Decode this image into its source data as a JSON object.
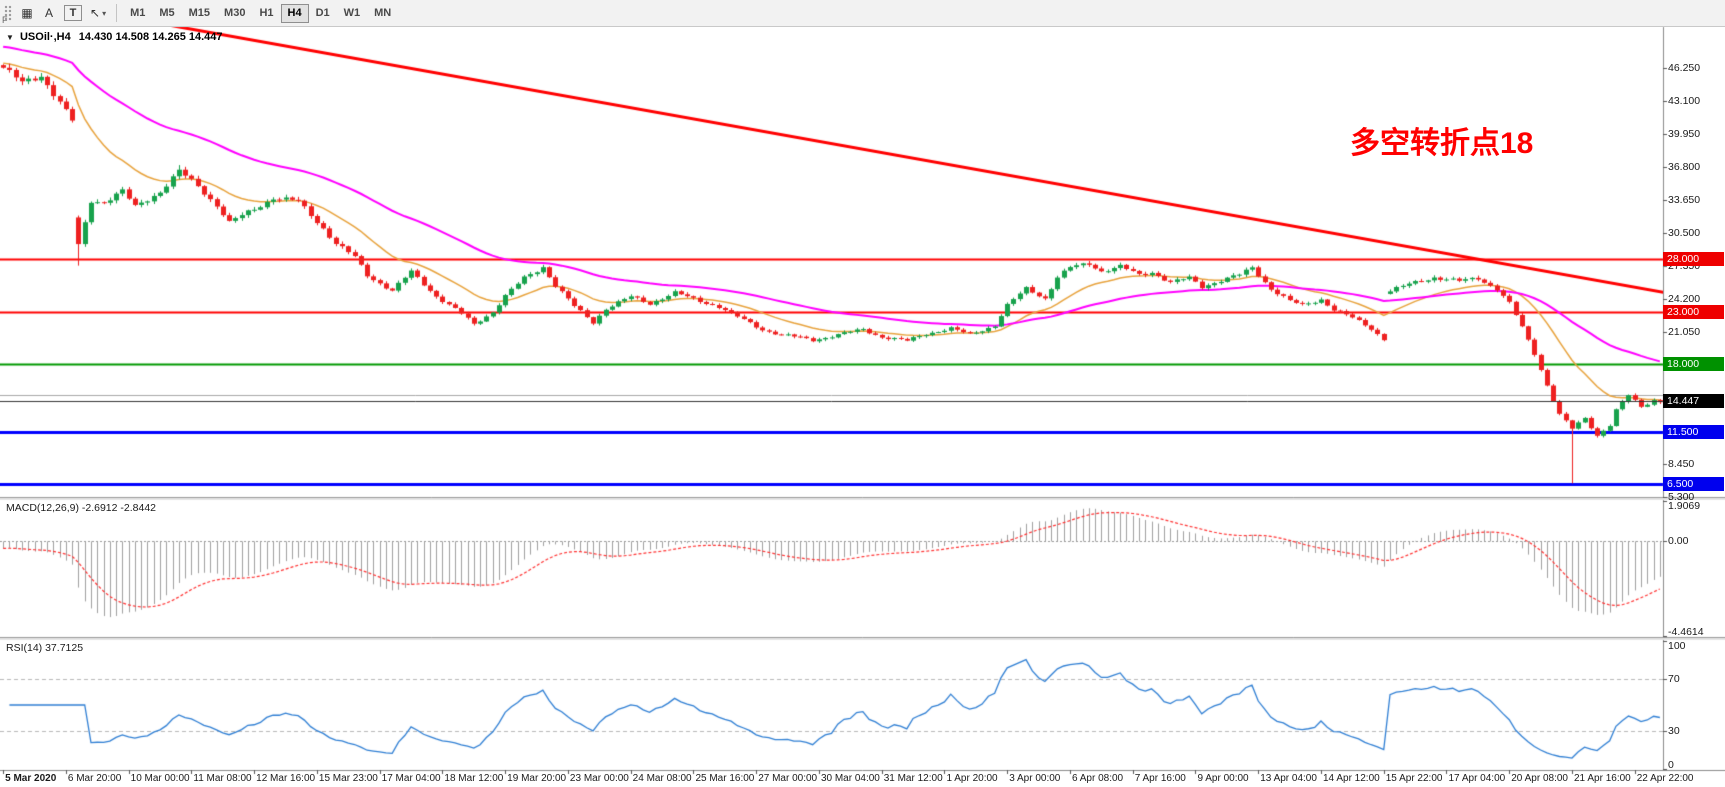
{
  "toolbar": {
    "icon_buttons": [
      {
        "id": "tile-windows",
        "glyph": "▦"
      },
      {
        "id": "text-label",
        "glyph": "A"
      },
      {
        "id": "textbox-tool",
        "glyph": "T"
      },
      {
        "id": "cursor-tool",
        "glyph": "↖"
      }
    ],
    "caret": "▾",
    "timeframes": [
      "M1",
      "M5",
      "M15",
      "M30",
      "H1",
      "H4",
      "D1",
      "W1",
      "MN"
    ],
    "active_timeframe": "H4",
    "docked_label": "F"
  },
  "chart": {
    "chevron": "▼",
    "title_symbol": "USOil·,H4",
    "ohlc": "14.430 14.508 14.265 14.447",
    "annotation": {
      "text": "多空转折点18",
      "color": "#ff0000"
    },
    "macd_label": "MACD(12,26,9) -2.6912 -2.8442",
    "rsi_label": "RSI(14) 37.7125"
  },
  "chart_data": {
    "type": "candlestick",
    "symbol": "USOil",
    "timeframe": "H4",
    "bars": 265,
    "current_price": 14.447,
    "ohlc_display": {
      "open": "14.430",
      "high": "14.508",
      "low": "14.265",
      "close": "14.447"
    },
    "candle_colors": {
      "up": "#17a24c",
      "down": "#ee2020"
    },
    "price_axis": {
      "min": 5.3,
      "max": 50.0,
      "ticks": [
        46.25,
        43.1,
        39.95,
        36.8,
        33.65,
        30.5,
        27.35,
        24.2,
        21.05,
        17.9,
        14.75,
        11.6,
        8.45,
        5.3
      ]
    },
    "close_waypoints": [
      [
        0,
        46.3
      ],
      [
        3,
        44.8
      ],
      [
        6,
        45.6
      ],
      [
        9,
        43.0
      ],
      [
        11,
        41.2
      ],
      [
        12,
        29.3
      ],
      [
        14,
        33.6
      ],
      [
        16,
        33.5
      ],
      [
        19,
        34.5
      ],
      [
        21,
        33.0
      ],
      [
        25,
        34.5
      ],
      [
        28,
        36.4
      ],
      [
        31,
        35.0
      ],
      [
        34,
        33.2
      ],
      [
        36,
        31.5
      ],
      [
        40,
        32.8
      ],
      [
        43,
        33.9
      ],
      [
        47,
        33.5
      ],
      [
        51,
        31.0
      ],
      [
        53,
        29.5
      ],
      [
        56,
        28.2
      ],
      [
        58,
        26.5
      ],
      [
        62,
        25.0
      ],
      [
        65,
        26.8
      ],
      [
        69,
        24.5
      ],
      [
        73,
        22.8
      ],
      [
        75,
        21.8
      ],
      [
        78,
        23.0
      ],
      [
        80,
        24.5
      ],
      [
        83,
        26.2
      ],
      [
        86,
        27.3
      ],
      [
        88,
        25.5
      ],
      [
        91,
        23.5
      ],
      [
        94,
        22.0
      ],
      [
        96,
        23.3
      ],
      [
        100,
        24.4
      ],
      [
        103,
        23.8
      ],
      [
        107,
        24.8
      ],
      [
        110,
        24.2
      ],
      [
        114,
        23.5
      ],
      [
        117,
        22.5
      ],
      [
        121,
        21.3
      ],
      [
        124,
        20.8
      ],
      [
        129,
        20.3
      ],
      [
        133,
        20.8
      ],
      [
        137,
        21.3
      ],
      [
        140,
        20.6
      ],
      [
        144,
        20.2
      ],
      [
        147,
        20.9
      ],
      [
        151,
        21.4
      ],
      [
        154,
        20.8
      ],
      [
        158,
        21.7
      ],
      [
        160,
        23.6
      ],
      [
        163,
        25.2
      ],
      [
        166,
        24.3
      ],
      [
        168,
        26.3
      ],
      [
        170,
        27.2
      ],
      [
        173,
        27.6
      ],
      [
        175,
        26.9
      ],
      [
        178,
        27.3
      ],
      [
        181,
        26.5
      ],
      [
        183,
        26.8
      ],
      [
        186,
        25.8
      ],
      [
        189,
        26.2
      ],
      [
        191,
        25.4
      ],
      [
        194,
        26.0
      ],
      [
        197,
        26.5
      ],
      [
        199,
        27.2
      ],
      [
        202,
        25.2
      ],
      [
        205,
        24.0
      ],
      [
        207,
        23.6
      ],
      [
        210,
        24.2
      ],
      [
        212,
        23.2
      ],
      [
        215,
        22.4
      ],
      [
        218,
        21.4
      ],
      [
        220,
        20.4
      ],
      [
        221,
        25.0
      ],
      [
        224,
        25.6
      ],
      [
        228,
        26.3
      ],
      [
        232,
        25.9
      ],
      [
        235,
        26.2
      ],
      [
        238,
        25.2
      ],
      [
        240,
        23.8
      ],
      [
        242,
        21.5
      ],
      [
        244,
        19.0
      ],
      [
        246,
        16.0
      ],
      [
        248,
        13.2
      ],
      [
        250,
        11.8
      ],
      [
        252,
        12.8
      ],
      [
        254,
        11.2
      ],
      [
        256,
        12.2
      ],
      [
        257,
        13.6
      ],
      [
        259,
        15.0
      ],
      [
        261,
        13.9
      ],
      [
        263,
        14.6
      ],
      [
        264,
        14.447
      ]
    ],
    "gap_opens": {
      "12": 32.0,
      "221": 24.7
    },
    "wick_overrides": [
      {
        "bar": 12,
        "low": 27.4
      },
      {
        "bar": 28,
        "high": 37.0
      },
      {
        "bar": 250,
        "low": 6.6
      }
    ],
    "horizontal_lines": [
      {
        "price": 28.0,
        "color": "#ff0000",
        "width": 2,
        "label": "28.000",
        "badge": "#ee0000"
      },
      {
        "price": 23.0,
        "color": "#ff0000",
        "width": 2,
        "label": "23.000",
        "badge": "#ee0000"
      },
      {
        "price": 18.0,
        "color": "#009900",
        "width": 2,
        "label": "18.000",
        "badge": "#009100"
      },
      {
        "price": 15.02,
        "color": "#a8a8a8",
        "width": 1,
        "label": null,
        "badge": null
      },
      {
        "price": 11.5,
        "color": "#0000ff",
        "width": 3,
        "label": "11.500",
        "badge": "#0000ee"
      },
      {
        "price": 6.5,
        "color": "#0000ff",
        "width": 3,
        "label": "6.500",
        "badge": "#0000ee"
      }
    ],
    "price_badge": {
      "price": 14.447,
      "label": "14.447",
      "bg": "#000000"
    },
    "trend_line": {
      "color": "#ff0000",
      "width": 3,
      "from_bar": 0,
      "from_price": 53.2,
      "to_bar": 265,
      "to_price": 24.8
    },
    "moving_averages": [
      {
        "name": "fast-ma",
        "period": 16,
        "seed": 46.8,
        "color": "#e8a33d",
        "width": 1.5
      },
      {
        "name": "slow-ma",
        "period": 48,
        "seed": 48.4,
        "color": "#ff00ff",
        "width": 2
      }
    ],
    "macd": {
      "params": "12,26,9",
      "main": -2.6912,
      "signal": -2.8442,
      "scale": {
        "min": -4.4614,
        "max": 1.9069
      },
      "ticks": [
        {
          "v": 1.9069,
          "label": "1.9069"
        },
        {
          "v": 0,
          "label": "0.00"
        },
        {
          "v": -4.4614,
          "label": "-4.4614"
        }
      ],
      "histogram_color": "#a0a0a0",
      "signal_color": "#ff3333"
    },
    "rsi": {
      "period": 14,
      "value": 37.7125,
      "scale": {
        "min": 0,
        "max": 100
      },
      "levels": [
        70,
        30
      ],
      "ticks": [
        {
          "v": 100,
          "label": "100"
        },
        {
          "v": 70,
          "label": "70"
        },
        {
          "v": 30,
          "label": "30"
        },
        {
          "v": 0,
          "label": "0"
        }
      ],
      "line_color": "#2f7fd4"
    },
    "x_axis_labels": [
      "5 Mar 2020",
      "6 Mar 20:00",
      "10 Mar 00:00",
      "11 Mar 08:00",
      "12 Mar 16:00",
      "15 Mar 23:00",
      "17 Mar 04:00",
      "18 Mar 12:00",
      "19 Mar 20:00",
      "23 Mar 00:00",
      "24 Mar 08:00",
      "25 Mar 16:00",
      "27 Mar 00:00",
      "30 Mar 04:00",
      "31 Mar 12:00",
      "1 Apr 20:00",
      "3 Apr 00:00",
      "6 Apr 08:00",
      "7 Apr 16:00",
      "9 Apr 00:00",
      "13 Apr 04:00",
      "14 Apr 12:00",
      "15 Apr 22:00",
      "17 Apr 04:00",
      "20 Apr 08:00",
      "21 Apr 16:00",
      "22 Apr 22:00"
    ]
  }
}
